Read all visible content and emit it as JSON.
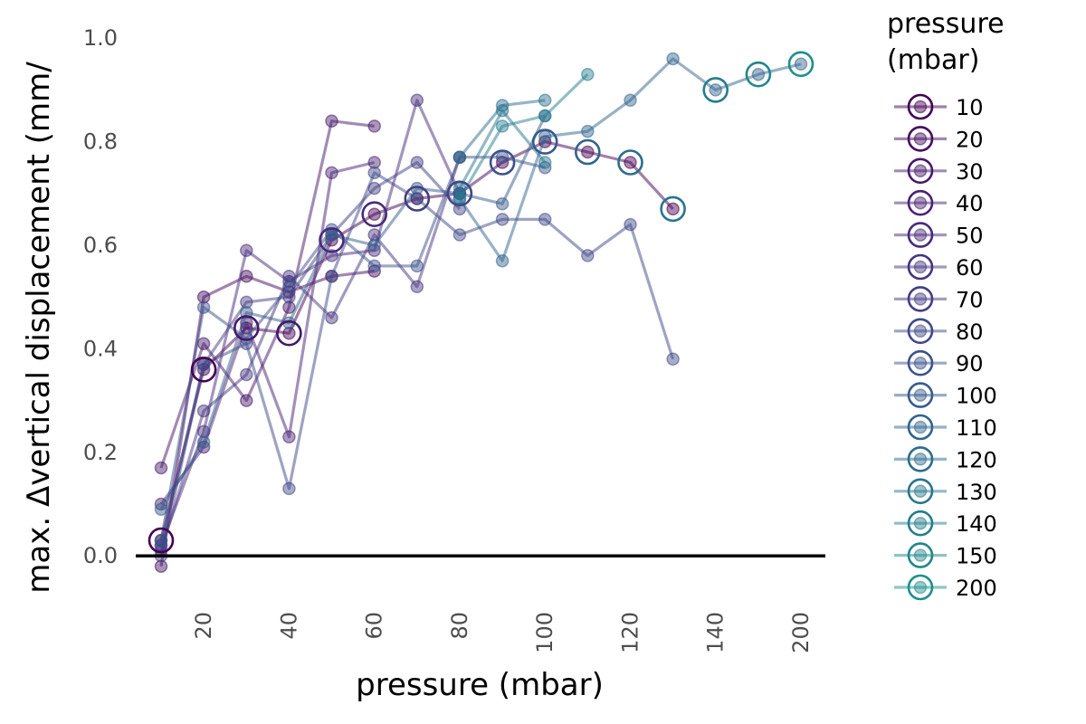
{
  "chart_data": {
    "type": "line",
    "xlabel": "pressure (mbar)",
    "ylabel": "max. Δvertical displacement (mm/",
    "legend_title_line1": "pressure",
    "legend_title_line2": "(mbar)",
    "legend_placement": "right",
    "grid": false,
    "x_axis_type": "categorical",
    "x_categories": [
      "10",
      "20",
      "30",
      "40",
      "50",
      "60",
      "70",
      "80",
      "90",
      "100",
      "110",
      "120",
      "130",
      "140",
      "150",
      "200"
    ],
    "x_tick_labels": [
      "20",
      "40",
      "60",
      "80",
      "100",
      "120",
      "140",
      "200"
    ],
    "ylim": [
      -0.08,
      1.03
    ],
    "y_ticks": [
      "0.0",
      "0.2",
      "0.4",
      "0.6",
      "0.8",
      "1.0"
    ],
    "zero_line": 0,
    "series": [
      {
        "name": "10",
        "color": "#440154",
        "trace": [
          [
            10,
            0.03
          ],
          [
            20,
            0.36
          ],
          [
            30,
            0.44
          ],
          [
            40,
            0.43
          ],
          [
            50,
            0.61
          ],
          [
            60,
            0.66
          ],
          [
            70,
            0.69
          ],
          [
            80,
            0.7
          ],
          [
            90,
            0.76
          ],
          [
            100,
            0.8
          ],
          [
            110,
            0.78
          ],
          [
            120,
            0.76
          ],
          [
            130,
            0.67
          ]
        ]
      },
      {
        "name": "20",
        "color": "#450d5f",
        "trace": [
          [
            10,
            -0.02
          ],
          [
            20,
            0.5
          ],
          [
            30,
            0.54
          ],
          [
            40,
            0.51
          ],
          [
            50,
            0.54
          ],
          [
            60,
            0.55
          ]
        ]
      },
      {
        "name": "30",
        "color": "#46186a",
        "trace": [
          [
            10,
            0.17
          ],
          [
            20,
            0.41
          ],
          [
            30,
            0.3
          ],
          [
            40,
            0.48
          ],
          [
            50,
            0.84
          ],
          [
            60,
            0.83
          ]
        ]
      },
      {
        "name": "40",
        "color": "#482274",
        "trace": [
          [
            10,
            0.1
          ],
          [
            20,
            0.21
          ],
          [
            30,
            0.45
          ],
          [
            40,
            0.23
          ],
          [
            50,
            0.74
          ],
          [
            60,
            0.76
          ]
        ]
      },
      {
        "name": "50",
        "color": "#472b7b",
        "trace": [
          [
            10,
            0.02
          ],
          [
            20,
            0.24
          ],
          [
            30,
            0.59
          ],
          [
            40,
            0.53
          ],
          [
            50,
            0.58
          ],
          [
            60,
            0.59
          ],
          [
            70,
            0.88
          ],
          [
            80,
            0.7
          ]
        ]
      },
      {
        "name": "60",
        "color": "#46357f",
        "trace": [
          [
            10,
            0.01
          ],
          [
            20,
            0.28
          ],
          [
            30,
            0.35
          ],
          [
            40,
            0.54
          ],
          [
            50,
            0.46
          ],
          [
            60,
            0.62
          ],
          [
            70,
            0.52
          ],
          [
            80,
            0.77
          ]
        ]
      },
      {
        "name": "70",
        "color": "#433f83",
        "trace": [
          [
            10,
            0.0
          ],
          [
            20,
            0.37
          ],
          [
            30,
            0.49
          ],
          [
            40,
            0.5
          ],
          [
            50,
            0.62
          ],
          [
            60,
            0.71
          ],
          [
            70,
            0.76
          ],
          [
            80,
            0.67
          ]
        ]
      },
      {
        "name": "80",
        "color": "#3f4888",
        "trace": [
          [
            10,
            0.02
          ],
          [
            20,
            0.37
          ],
          [
            30,
            0.41
          ],
          [
            40,
            0.13
          ],
          [
            50,
            0.54
          ],
          [
            60,
            0.74
          ],
          [
            70,
            0.69
          ],
          [
            80,
            0.62
          ],
          [
            90,
            0.65
          ],
          [
            100,
            0.65
          ],
          [
            110,
            0.58
          ],
          [
            120,
            0.64
          ],
          [
            130,
            0.38
          ]
        ]
      },
      {
        "name": "90",
        "color": "#3b528b",
        "trace": [
          [
            10,
            0.03
          ],
          [
            20,
            0.48
          ],
          [
            30,
            0.42
          ],
          [
            40,
            0.52
          ],
          [
            50,
            0.63
          ],
          [
            60,
            0.56
          ],
          [
            70,
            0.56
          ],
          [
            80,
            0.77
          ],
          [
            90,
            0.77
          ],
          [
            100,
            0.75
          ]
        ]
      },
      {
        "name": "100",
        "color": "#365b8c",
        "trace": [
          [
            10,
            0.09
          ],
          [
            20,
            0.22
          ],
          [
            30,
            0.47
          ],
          [
            40,
            0.45
          ],
          [
            50,
            0.62
          ],
          [
            60,
            0.6
          ],
          [
            70,
            0.71
          ],
          [
            80,
            0.7
          ],
          [
            90,
            0.68
          ],
          [
            100,
            0.85
          ]
        ]
      },
      {
        "name": "110",
        "color": "#31648d",
        "trace": [
          [
            80,
            0.69
          ],
          [
            90,
            0.57
          ],
          [
            100,
            0.81
          ],
          [
            110,
            0.82
          ],
          [
            120,
            0.88
          ],
          [
            130,
            0.96
          ],
          [
            140,
            0.9
          ],
          [
            150,
            0.93
          ],
          [
            200,
            0.95
          ]
        ]
      },
      {
        "name": "120",
        "color": "#2c6d8e",
        "trace": [
          [
            80,
            0.77
          ],
          [
            90,
            0.87
          ],
          [
            100,
            0.88
          ]
        ]
      },
      {
        "name": "130",
        "color": "#28758e",
        "trace": [
          [
            80,
            0.71
          ],
          [
            90,
            0.86
          ],
          [
            100,
            0.76
          ]
        ]
      },
      {
        "name": "140",
        "color": "#247d8e",
        "trace": [
          [
            80,
            0.69
          ],
          [
            90,
            0.83
          ],
          [
            100,
            0.85
          ],
          [
            110,
            0.93
          ]
        ]
      },
      {
        "name": "150",
        "color": "#21868d",
        "trace": []
      },
      {
        "name": "200",
        "color": "#1f8f8c",
        "trace": []
      }
    ],
    "mean_markers": [
      {
        "x": 10,
        "y": 0.03,
        "color": "#440154"
      },
      {
        "x": 20,
        "y": 0.36,
        "color": "#440154"
      },
      {
        "x": 30,
        "y": 0.44,
        "color": "#46186a"
      },
      {
        "x": 40,
        "y": 0.43,
        "color": "#46186a"
      },
      {
        "x": 50,
        "y": 0.61,
        "color": "#472b7b"
      },
      {
        "x": 60,
        "y": 0.66,
        "color": "#472b7b"
      },
      {
        "x": 70,
        "y": 0.69,
        "color": "#433f83"
      },
      {
        "x": 80,
        "y": 0.7,
        "color": "#3f4888"
      },
      {
        "x": 90,
        "y": 0.76,
        "color": "#3b528b"
      },
      {
        "x": 100,
        "y": 0.8,
        "color": "#365b8c"
      },
      {
        "x": 110,
        "y": 0.78,
        "color": "#31648d"
      },
      {
        "x": 120,
        "y": 0.76,
        "color": "#2c6d8e"
      },
      {
        "x": 130,
        "y": 0.67,
        "color": "#28758e"
      },
      {
        "x": 140,
        "y": 0.9,
        "color": "#247d8e"
      },
      {
        "x": 150,
        "y": 0.93,
        "color": "#21868d"
      },
      {
        "x": 200,
        "y": 0.95,
        "color": "#1f8f8c"
      }
    ]
  }
}
